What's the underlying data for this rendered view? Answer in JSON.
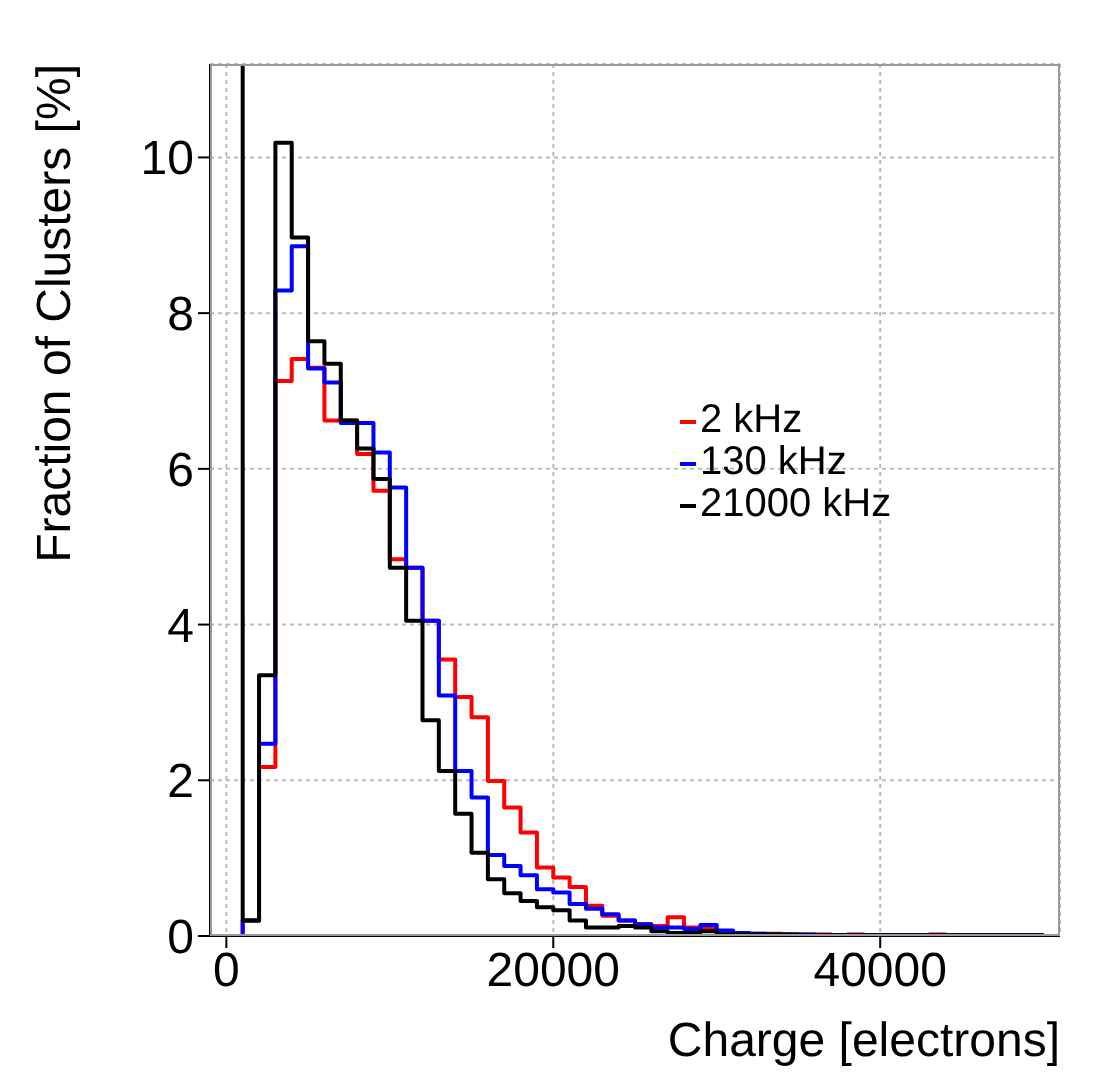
{
  "chart_data": {
    "type": "histogram",
    "xlabel": "Charge [electrons]",
    "ylabel": "Fraction of Clusters [%]",
    "bins": [
      0,
      1000,
      2000,
      3000,
      4000,
      5000,
      6000,
      7000,
      8000,
      9000,
      10000,
      11000,
      12000,
      13000,
      14000,
      15000,
      16000,
      17000,
      18000,
      19000,
      20000,
      21000,
      22000,
      23000,
      24000,
      25000,
      26000,
      27000,
      28000,
      29000,
      30000,
      31000,
      32000,
      33000,
      34000,
      35000,
      36000,
      37000,
      38000,
      39000,
      40000,
      41000,
      42000,
      43000,
      44000,
      45000,
      46000,
      47000,
      48000,
      49000,
      50000
    ],
    "series": [
      {
        "name": "2 kHz",
        "color": "#ff0000",
        "values": [
          0,
          0.2,
          2.17,
          7.13,
          7.41,
          7.3,
          6.62,
          6.62,
          6.19,
          5.72,
          4.84,
          4.73,
          4.05,
          3.55,
          3.07,
          2.81,
          1.99,
          1.65,
          1.33,
          0.88,
          0.75,
          0.63,
          0.39,
          0.26,
          0.2,
          0.15,
          0.13,
          0.24,
          0.11,
          0.09,
          0.05,
          0.04,
          0.03,
          0.03,
          0.02,
          0.02,
          0.02,
          0.01,
          0.02,
          0.01,
          0.01,
          0.01,
          0.01,
          0.02,
          0.01,
          0.01,
          0.01,
          0.01,
          0.01,
          0.01
        ]
      },
      {
        "name": "130 kHz",
        "color": "#0000ff",
        "values": [
          0,
          0.2,
          2.47,
          8.29,
          8.86,
          7.29,
          7.11,
          6.59,
          6.59,
          6.21,
          5.76,
          4.73,
          4.05,
          3.09,
          2.12,
          1.78,
          1.04,
          0.9,
          0.78,
          0.6,
          0.56,
          0.41,
          0.35,
          0.28,
          0.2,
          0.15,
          0.11,
          0.11,
          0.09,
          0.14,
          0.07,
          0.04,
          0.03,
          0.02,
          0.02,
          0.02,
          0.01,
          0.01,
          0.01,
          0.01,
          0.01,
          0.01,
          0.01,
          0.01,
          0.01,
          0.01,
          0.01,
          0.01,
          0.01,
          0.01
        ]
      },
      {
        "name": "21000 kHz",
        "color": "#000000",
        "values": [
          11.2,
          0.2,
          3.35,
          10.19,
          8.97,
          7.64,
          7.35,
          6.62,
          6.26,
          5.87,
          4.73,
          4.05,
          2.77,
          2.12,
          1.57,
          1.07,
          0.73,
          0.55,
          0.45,
          0.37,
          0.33,
          0.2,
          0.11,
          0.11,
          0.13,
          0.11,
          0.06,
          0.04,
          0.04,
          0.06,
          0.02,
          0.02,
          0.02,
          0.02,
          0.02,
          0.01,
          0.01,
          0.01,
          0.01,
          0.01,
          0.01,
          0.01,
          0.01,
          0.01,
          0.01,
          0.01,
          0.01,
          0.01,
          0.01,
          0.01
        ]
      }
    ],
    "xlim": [
      -1000,
      51000
    ],
    "xticks": [
      0,
      20000,
      40000
    ],
    "ylim": [
      0,
      11.2
    ],
    "yticks": [
      0,
      2,
      4,
      6,
      8,
      10
    ],
    "grid": true,
    "legend": "right"
  }
}
